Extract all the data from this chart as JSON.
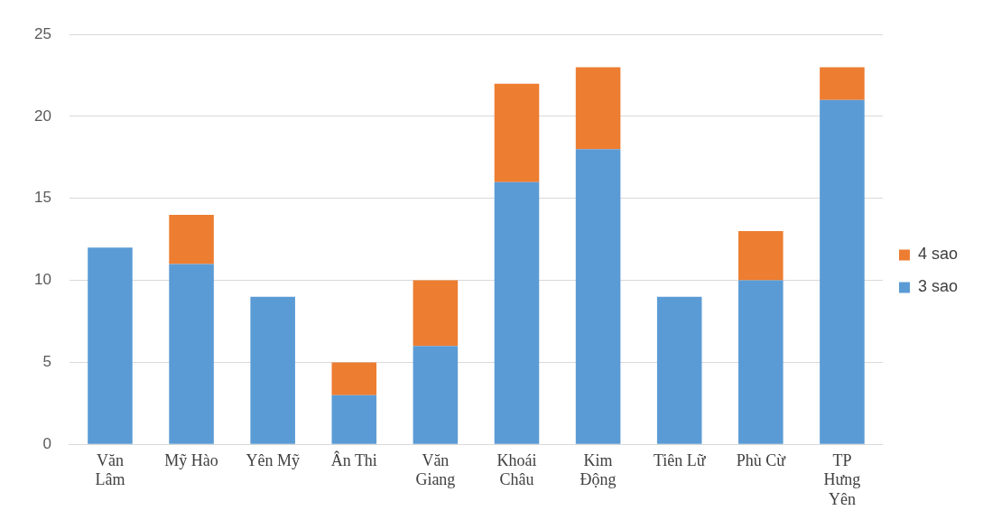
{
  "chart_data": {
    "type": "bar",
    "stacked": true,
    "categories": [
      "Văn Lâm",
      "Mỹ Hào",
      "Yên Mỹ",
      "Ân Thi",
      "Văn Giang",
      "Khoái Châu",
      "Kim Động",
      "Tiên Lữ",
      "Phù Cừ",
      "TP Hưng Yên"
    ],
    "series": [
      {
        "name": "3 sao",
        "color": "#5b9bd5",
        "values": [
          12,
          11,
          9,
          3,
          6,
          16,
          18,
          9,
          10,
          21
        ]
      },
      {
        "name": "4 sao",
        "color": "#ed7d31",
        "values": [
          null,
          3,
          null,
          2,
          4,
          6,
          5,
          null,
          3,
          2
        ]
      }
    ],
    "ylim": [
      0,
      25
    ],
    "yticks": [
      0,
      5,
      10,
      15,
      20,
      25
    ],
    "grid": "y",
    "legend": "right"
  }
}
